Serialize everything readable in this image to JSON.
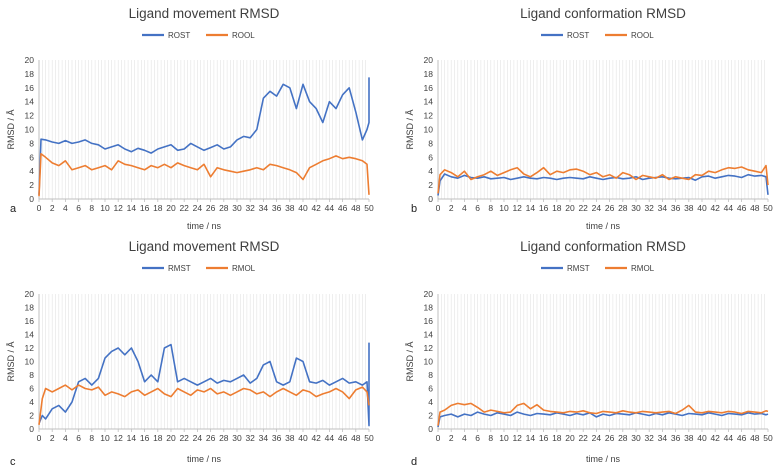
{
  "colors": {
    "series_a": "#4472C4",
    "series_b": "#ED7D31",
    "grid": "#e3e3e3",
    "axis": "#bfbfbf",
    "text": "#404040"
  },
  "chart_data": [
    {
      "type": "line",
      "panel": "a",
      "title": "Ligand movement RMSD",
      "xlabel": "time / ns",
      "ylabel": "RMSD / Å",
      "xlim": [
        0,
        50
      ],
      "ylim": [
        0,
        20
      ],
      "xticks": [
        "0",
        "2",
        "4",
        "6",
        "8",
        "10",
        "12",
        "14",
        "16",
        "18",
        "20",
        "22",
        "24",
        "26",
        "28",
        "30",
        "32",
        "34",
        "36",
        "38",
        "40",
        "42",
        "44",
        "46",
        "48",
        "50"
      ],
      "yticks": [
        "0",
        "2",
        "4",
        "6",
        "8",
        "10",
        "12",
        "14",
        "16",
        "18",
        "20"
      ],
      "legend_position": "top-center",
      "series": [
        {
          "name": "ROST",
          "color": "#4472C4",
          "x": [
            0,
            0.3,
            1,
            2,
            3,
            4,
            5,
            6,
            7,
            8,
            9,
            10,
            11,
            12,
            13,
            14,
            15,
            16,
            17,
            18,
            19,
            20,
            21,
            22,
            23,
            24,
            25,
            26,
            27,
            28,
            29,
            30,
            31,
            32,
            33,
            34,
            35,
            36,
            37,
            38,
            39,
            40,
            41,
            42,
            43,
            44,
            45,
            46,
            47,
            48,
            49,
            49.7,
            50,
            50
          ],
          "values": [
            0.6,
            8.6,
            8.5,
            8.2,
            8.0,
            8.4,
            8.0,
            8.2,
            8.5,
            8.0,
            7.8,
            7.2,
            7.5,
            7.8,
            7.2,
            6.8,
            7.3,
            7.0,
            6.6,
            7.2,
            7.5,
            7.8,
            7.0,
            7.2,
            8.0,
            7.5,
            7.0,
            7.4,
            7.8,
            7.2,
            7.5,
            8.5,
            9.0,
            8.8,
            10.0,
            14.5,
            15.5,
            14.8,
            16.5,
            16.0,
            13.0,
            16.5,
            14.0,
            13.0,
            11.0,
            14.0,
            13.0,
            15.0,
            16.0,
            12.5,
            8.5,
            10.0,
            11.0,
            17.5
          ]
        },
        {
          "name": "ROOL",
          "color": "#ED7D31",
          "x": [
            0,
            0.3,
            1,
            2,
            3,
            4,
            5,
            6,
            7,
            8,
            9,
            10,
            11,
            12,
            13,
            14,
            15,
            16,
            17,
            18,
            19,
            20,
            21,
            22,
            23,
            24,
            25,
            26,
            27,
            28,
            29,
            30,
            31,
            32,
            33,
            34,
            35,
            36,
            37,
            38,
            39,
            40,
            41,
            42,
            43,
            44,
            45,
            46,
            47,
            48,
            49,
            49.7,
            50
          ],
          "values": [
            0.4,
            6.5,
            6.0,
            5.2,
            4.8,
            5.5,
            4.2,
            4.5,
            4.8,
            4.2,
            4.5,
            4.8,
            4.2,
            5.5,
            5.0,
            4.8,
            4.5,
            4.2,
            4.8,
            4.5,
            5.0,
            4.5,
            5.2,
            4.8,
            4.5,
            4.2,
            5.0,
            3.2,
            4.5,
            4.2,
            4.0,
            3.8,
            4.0,
            4.2,
            4.5,
            4.2,
            5.0,
            4.8,
            4.5,
            4.2,
            3.8,
            2.8,
            4.5,
            5.0,
            5.5,
            5.8,
            6.2,
            5.8,
            6.0,
            5.8,
            5.5,
            5.0,
            0.6
          ]
        }
      ]
    },
    {
      "type": "line",
      "panel": "b",
      "title": "Ligand conformation RMSD",
      "xlabel": "time / ns",
      "ylabel": "RMSD / Å",
      "xlim": [
        0,
        50
      ],
      "ylim": [
        0,
        20
      ],
      "xticks": [
        "0",
        "2",
        "4",
        "6",
        "8",
        "10",
        "12",
        "14",
        "16",
        "18",
        "20",
        "22",
        "24",
        "26",
        "28",
        "30",
        "32",
        "34",
        "36",
        "38",
        "40",
        "42",
        "44",
        "46",
        "48",
        "50"
      ],
      "yticks": [
        "0",
        "2",
        "4",
        "6",
        "8",
        "10",
        "12",
        "14",
        "16",
        "18",
        "20"
      ],
      "legend_position": "top-center",
      "series": [
        {
          "name": "ROST",
          "color": "#4472C4",
          "x": [
            0,
            0.3,
            1,
            2,
            3,
            4,
            5,
            6,
            7,
            8,
            9,
            10,
            11,
            12,
            13,
            14,
            15,
            16,
            17,
            18,
            19,
            20,
            21,
            22,
            23,
            24,
            25,
            26,
            27,
            28,
            29,
            30,
            31,
            32,
            33,
            34,
            35,
            36,
            37,
            38,
            39,
            40,
            41,
            42,
            43,
            44,
            45,
            46,
            47,
            48,
            49,
            49.7,
            50
          ],
          "values": [
            0.5,
            2.6,
            3.6,
            3.2,
            3.0,
            3.4,
            3.1,
            3.0,
            3.2,
            2.9,
            3.0,
            3.1,
            2.8,
            3.0,
            3.2,
            3.0,
            2.9,
            3.1,
            3.0,
            2.8,
            3.0,
            3.1,
            3.0,
            2.9,
            3.2,
            3.0,
            2.8,
            3.0,
            3.1,
            2.9,
            3.0,
            3.2,
            2.8,
            3.0,
            3.1,
            3.2,
            3.0,
            2.9,
            3.0,
            3.1,
            2.7,
            3.2,
            3.3,
            3.0,
            3.2,
            3.4,
            3.3,
            3.1,
            3.5,
            3.3,
            3.4,
            3.2,
            0.6
          ]
        },
        {
          "name": "ROOL",
          "color": "#ED7D31",
          "x": [
            0,
            0.3,
            1,
            2,
            3,
            4,
            5,
            6,
            7,
            8,
            9,
            10,
            11,
            12,
            13,
            14,
            15,
            16,
            17,
            18,
            19,
            20,
            21,
            22,
            23,
            24,
            25,
            26,
            27,
            28,
            29,
            30,
            31,
            32,
            33,
            34,
            35,
            36,
            37,
            38,
            39,
            40,
            41,
            42,
            43,
            44,
            45,
            46,
            47,
            48,
            49,
            49.7,
            50
          ],
          "values": [
            0.8,
            3.5,
            4.2,
            3.8,
            3.2,
            4.0,
            2.8,
            3.2,
            3.5,
            4.0,
            3.4,
            3.8,
            4.2,
            4.5,
            3.6,
            3.2,
            3.8,
            4.5,
            3.5,
            4.0,
            3.8,
            4.2,
            4.3,
            4.0,
            3.5,
            3.8,
            3.2,
            3.5,
            3.0,
            3.8,
            3.5,
            2.8,
            3.4,
            3.2,
            3.0,
            3.5,
            2.8,
            3.2,
            3.0,
            2.8,
            3.5,
            3.4,
            4.0,
            3.8,
            4.2,
            4.5,
            4.4,
            4.6,
            4.2,
            4.0,
            3.8,
            4.8,
            2.0
          ]
        }
      ]
    },
    {
      "type": "line",
      "panel": "c",
      "title": "Ligand movement RMSD",
      "xlabel": "time / ns",
      "ylabel": "RMSD / Å",
      "xlim": [
        0,
        50
      ],
      "ylim": [
        0,
        20
      ],
      "xticks": [
        "0",
        "2",
        "4",
        "6",
        "8",
        "10",
        "12",
        "14",
        "16",
        "18",
        "20",
        "22",
        "24",
        "26",
        "28",
        "30",
        "32",
        "34",
        "36",
        "38",
        "40",
        "42",
        "44",
        "46",
        "48",
        "50"
      ],
      "yticks": [
        "0",
        "2",
        "4",
        "6",
        "8",
        "10",
        "12",
        "14",
        "16",
        "18",
        "20"
      ],
      "legend_position": "top-center",
      "series": [
        {
          "name": "RMST",
          "color": "#4472C4",
          "x": [
            0,
            0.5,
            1,
            2,
            3,
            4,
            5,
            6,
            7,
            8,
            9,
            10,
            11,
            12,
            13,
            14,
            15,
            16,
            17,
            18,
            19,
            20,
            21,
            22,
            23,
            24,
            25,
            26,
            27,
            28,
            29,
            30,
            31,
            32,
            33,
            34,
            35,
            36,
            37,
            38,
            39,
            40,
            41,
            42,
            43,
            44,
            45,
            46,
            47,
            48,
            49,
            49.7,
            50,
            50
          ],
          "values": [
            0.8,
            2.0,
            1.5,
            3.0,
            3.5,
            2.5,
            4.0,
            7.0,
            7.5,
            6.5,
            7.5,
            10.5,
            11.5,
            12.0,
            11.0,
            12.0,
            10.0,
            7.0,
            8.0,
            7.0,
            12.0,
            12.5,
            7.0,
            7.5,
            7.0,
            6.5,
            7.0,
            7.5,
            6.8,
            7.2,
            7.0,
            7.5,
            8.0,
            6.8,
            7.5,
            9.5,
            10.0,
            7.0,
            6.5,
            7.0,
            10.5,
            10.0,
            7.0,
            6.8,
            7.2,
            6.5,
            7.0,
            7.5,
            6.8,
            7.0,
            6.5,
            7.0,
            0.5,
            12.8
          ]
        },
        {
          "name": "RMOL",
          "color": "#ED7D31",
          "x": [
            0,
            0.5,
            1,
            2,
            3,
            4,
            5,
            6,
            7,
            8,
            9,
            10,
            11,
            12,
            13,
            14,
            15,
            16,
            17,
            18,
            19,
            20,
            21,
            22,
            23,
            24,
            25,
            26,
            27,
            28,
            29,
            30,
            31,
            32,
            33,
            34,
            35,
            36,
            37,
            38,
            39,
            40,
            41,
            42,
            43,
            44,
            45,
            46,
            47,
            48,
            49,
            49.7,
            50
          ],
          "values": [
            0.6,
            4.5,
            6.0,
            5.5,
            6.0,
            6.5,
            5.8,
            6.5,
            6.0,
            5.8,
            6.2,
            5.0,
            5.5,
            5.2,
            4.8,
            5.5,
            5.8,
            5.0,
            5.5,
            6.0,
            5.2,
            4.8,
            6.0,
            5.5,
            5.0,
            5.8,
            5.5,
            6.0,
            5.2,
            5.5,
            5.0,
            5.5,
            6.0,
            5.8,
            5.2,
            5.5,
            4.8,
            5.5,
            6.0,
            5.5,
            5.0,
            5.8,
            5.5,
            4.8,
            5.2,
            5.5,
            6.0,
            5.5,
            4.5,
            5.8,
            6.2,
            5.5,
            3.5
          ]
        }
      ]
    },
    {
      "type": "line",
      "panel": "d",
      "title": "Ligand conformation RMSD",
      "xlabel": "time / ns",
      "ylabel": "RMSD / Å",
      "xlim": [
        0,
        50
      ],
      "ylim": [
        0,
        20
      ],
      "xticks": [
        "0",
        "2",
        "4",
        "6",
        "8",
        "10",
        "12",
        "14",
        "16",
        "18",
        "20",
        "22",
        "24",
        "26",
        "28",
        "30",
        "32",
        "34",
        "36",
        "38",
        "40",
        "42",
        "44",
        "46",
        "48",
        "50"
      ],
      "yticks": [
        "0",
        "2",
        "4",
        "6",
        "8",
        "10",
        "12",
        "14",
        "16",
        "18",
        "20"
      ],
      "legend_position": "top-center",
      "series": [
        {
          "name": "RMST",
          "color": "#4472C4",
          "x": [
            0,
            0.3,
            1,
            2,
            3,
            4,
            5,
            6,
            7,
            8,
            9,
            10,
            11,
            12,
            13,
            14,
            15,
            16,
            17,
            18,
            19,
            20,
            21,
            22,
            23,
            24,
            25,
            26,
            27,
            28,
            29,
            30,
            31,
            32,
            33,
            34,
            35,
            36,
            37,
            38,
            39,
            40,
            41,
            42,
            43,
            44,
            45,
            46,
            47,
            48,
            49,
            49.7,
            50
          ],
          "values": [
            0.3,
            1.8,
            2.0,
            2.2,
            1.8,
            2.2,
            2.0,
            2.5,
            2.2,
            2.0,
            2.4,
            2.2,
            2.0,
            2.5,
            2.2,
            2.0,
            2.3,
            2.2,
            2.1,
            2.4,
            2.2,
            2.0,
            2.3,
            2.1,
            2.4,
            1.8,
            2.2,
            2.0,
            2.3,
            2.2,
            2.1,
            2.4,
            2.2,
            2.0,
            2.3,
            2.1,
            2.4,
            2.2,
            2.0,
            2.3,
            2.2,
            2.1,
            2.4,
            2.2,
            2.0,
            2.3,
            2.2,
            2.1,
            2.4,
            2.2,
            2.3,
            2.1,
            2.2
          ]
        },
        {
          "name": "RMOL",
          "color": "#ED7D31",
          "x": [
            0,
            0.3,
            1,
            2,
            3,
            4,
            5,
            6,
            7,
            8,
            9,
            10,
            11,
            12,
            13,
            14,
            15,
            16,
            17,
            18,
            19,
            20,
            21,
            22,
            23,
            24,
            25,
            26,
            27,
            28,
            29,
            30,
            31,
            32,
            33,
            34,
            35,
            36,
            37,
            38,
            39,
            40,
            41,
            42,
            43,
            44,
            45,
            46,
            47,
            48,
            49,
            49.7,
            50
          ],
          "values": [
            0.5,
            2.5,
            2.8,
            3.5,
            3.8,
            3.6,
            3.8,
            3.2,
            2.5,
            2.8,
            2.6,
            2.4,
            2.5,
            3.5,
            3.8,
            3.0,
            3.6,
            2.8,
            2.6,
            2.5,
            2.4,
            2.6,
            2.5,
            2.7,
            2.4,
            2.3,
            2.6,
            2.5,
            2.4,
            2.7,
            2.5,
            2.4,
            2.6,
            2.5,
            2.4,
            2.5,
            2.6,
            2.3,
            2.8,
            3.5,
            2.5,
            2.4,
            2.6,
            2.5,
            2.4,
            2.6,
            2.5,
            2.3,
            2.6,
            2.5,
            2.4,
            2.7,
            2.6
          ]
        }
      ]
    }
  ]
}
